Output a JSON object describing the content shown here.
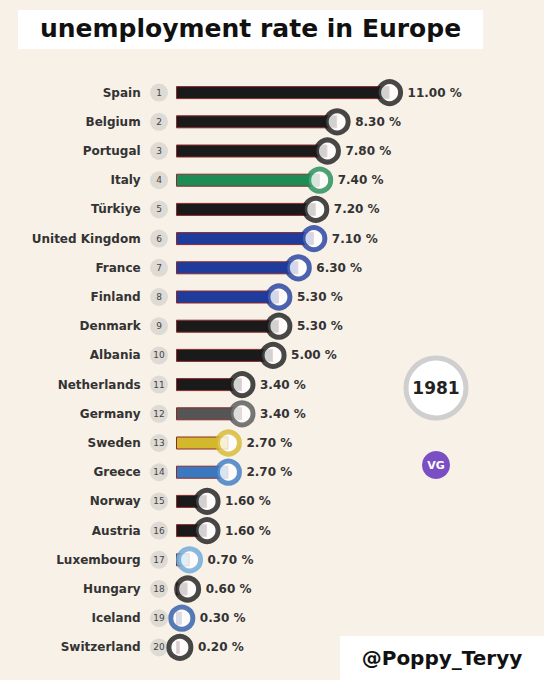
{
  "chart_data": {
    "type": "bar",
    "title": "unemployment rate in Europe",
    "orientation": "horizontal",
    "categories": [
      "Spain",
      "Belgium",
      "Portugal",
      "Italy",
      "Türkiye",
      "United Kingdom",
      "France",
      "Finland",
      "Denmark",
      "Albania",
      "Netherlands",
      "Germany",
      "Sweden",
      "Greece",
      "Norway",
      "Austria",
      "Luxembourg",
      "Hungary",
      "Iceland",
      "Switzerland"
    ],
    "ranks": [
      1,
      2,
      3,
      4,
      5,
      6,
      7,
      8,
      9,
      10,
      11,
      12,
      13,
      14,
      15,
      16,
      17,
      18,
      19,
      20
    ],
    "values": [
      11.0,
      8.3,
      7.8,
      7.4,
      7.2,
      7.1,
      6.3,
      5.3,
      5.3,
      5.0,
      3.4,
      3.4,
      2.7,
      2.7,
      1.6,
      1.6,
      0.7,
      0.6,
      0.3,
      0.2
    ],
    "value_labels": [
      "11.00 %",
      "8.30 %",
      "7.80 %",
      "7.40 %",
      "7.20 %",
      "7.10 %",
      "6.30 %",
      "5.30 %",
      "5.30 %",
      "5.00 %",
      "3.40 %",
      "3.40 %",
      "2.70 %",
      "2.70 %",
      "1.60 %",
      "1.60 %",
      "0.70 %",
      "0.60 %",
      "0.30 %",
      "0.20 %"
    ],
    "colors": [
      "#1a1a1a",
      "#1a1a1a",
      "#1a1a1a",
      "#1e8c55",
      "#1a1a1a",
      "#1f3c9c",
      "#1f3c9c",
      "#1f3c9c",
      "#1a1a1a",
      "#1a1a1a",
      "#1a1a1a",
      "#555555",
      "#d4b82c",
      "#3a78c0",
      "#1a1a1a",
      "#1a1a1a",
      "#6aa8d8",
      "#1a1a1a",
      "#2a5aa8",
      "#1a1a1a"
    ],
    "data_labels": true,
    "tick_labels": "y",
    "grid": false,
    "annotations": [
      "1981",
      "VG",
      "@Poppy_Teryy"
    ]
  }
}
